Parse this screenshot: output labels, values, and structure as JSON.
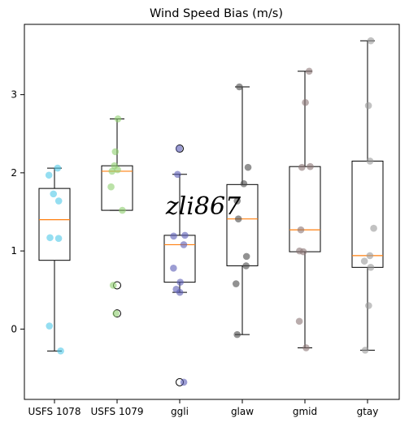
{
  "chart_data": {
    "type": "box",
    "title": "Wind Speed Bias (m/s)",
    "xlabel": "",
    "ylabel": "",
    "categories": [
      "USFS 1078",
      "USFS 1079",
      "ggli",
      "glaw",
      "gmid",
      "gtay"
    ],
    "ylim": [
      -0.9,
      3.9
    ],
    "yticks": [
      0,
      1,
      2,
      3
    ],
    "grid": false,
    "boxes": [
      {
        "category": "USFS 1078",
        "whisker_low": -0.28,
        "q1": 0.88,
        "median": 1.4,
        "q3": 1.8,
        "whisker_high": 2.06,
        "fliers": []
      },
      {
        "category": "USFS 1079",
        "whisker_low": 1.52,
        "q1": 1.52,
        "median": 2.02,
        "q3": 2.09,
        "whisker_high": 2.69,
        "fliers": [
          0.56,
          0.2
        ]
      },
      {
        "category": "ggli",
        "whisker_low": 0.47,
        "q1": 0.6,
        "median": 1.08,
        "q3": 1.2,
        "whisker_high": 1.98,
        "fliers": [
          2.31,
          -0.68
        ]
      },
      {
        "category": "glaw",
        "whisker_low": -0.07,
        "q1": 0.81,
        "median": 1.41,
        "q3": 1.85,
        "whisker_high": 3.1,
        "fliers": []
      },
      {
        "category": "gmid",
        "whisker_low": -0.24,
        "q1": 0.99,
        "median": 1.27,
        "q3": 2.08,
        "whisker_high": 3.3,
        "fliers": []
      },
      {
        "category": "gtay",
        "whisker_low": -0.27,
        "q1": 0.79,
        "median": 0.94,
        "q3": 2.15,
        "whisker_high": 3.69,
        "fliers": []
      }
    ],
    "points": [
      {
        "category": "USFS 1078",
        "color": "#4fc8e8",
        "values": [
          2.06,
          1.97,
          1.73,
          1.64,
          1.17,
          1.16,
          0.04,
          -0.28
        ]
      },
      {
        "category": "USFS 1079",
        "color": "#8ecf6e",
        "values": [
          2.69,
          2.27,
          2.09,
          2.04,
          2.02,
          1.82,
          1.52,
          0.56,
          0.2
        ]
      },
      {
        "category": "ggli",
        "color": "#5a5cb5",
        "values": [
          2.31,
          1.98,
          1.2,
          1.19,
          1.08,
          0.78,
          0.6,
          0.51,
          0.47,
          -0.68
        ]
      },
      {
        "category": "glaw",
        "color": "#4a4a4a",
        "values": [
          3.1,
          2.07,
          1.86,
          1.64,
          1.41,
          0.93,
          0.81,
          0.58,
          -0.07
        ]
      },
      {
        "category": "gmid",
        "color": "#8a7575",
        "values": [
          3.3,
          2.9,
          2.08,
          2.07,
          1.27,
          1.0,
          0.99,
          0.1,
          -0.24
        ]
      },
      {
        "category": "gtay",
        "color": "#9a9a9a",
        "values": [
          3.69,
          2.86,
          2.15,
          1.29,
          0.94,
          0.87,
          0.79,
          0.3,
          -0.27
        ]
      }
    ],
    "colors": {
      "median": "#ff7f0e",
      "box": "#000000"
    }
  },
  "watermark": "zli867"
}
